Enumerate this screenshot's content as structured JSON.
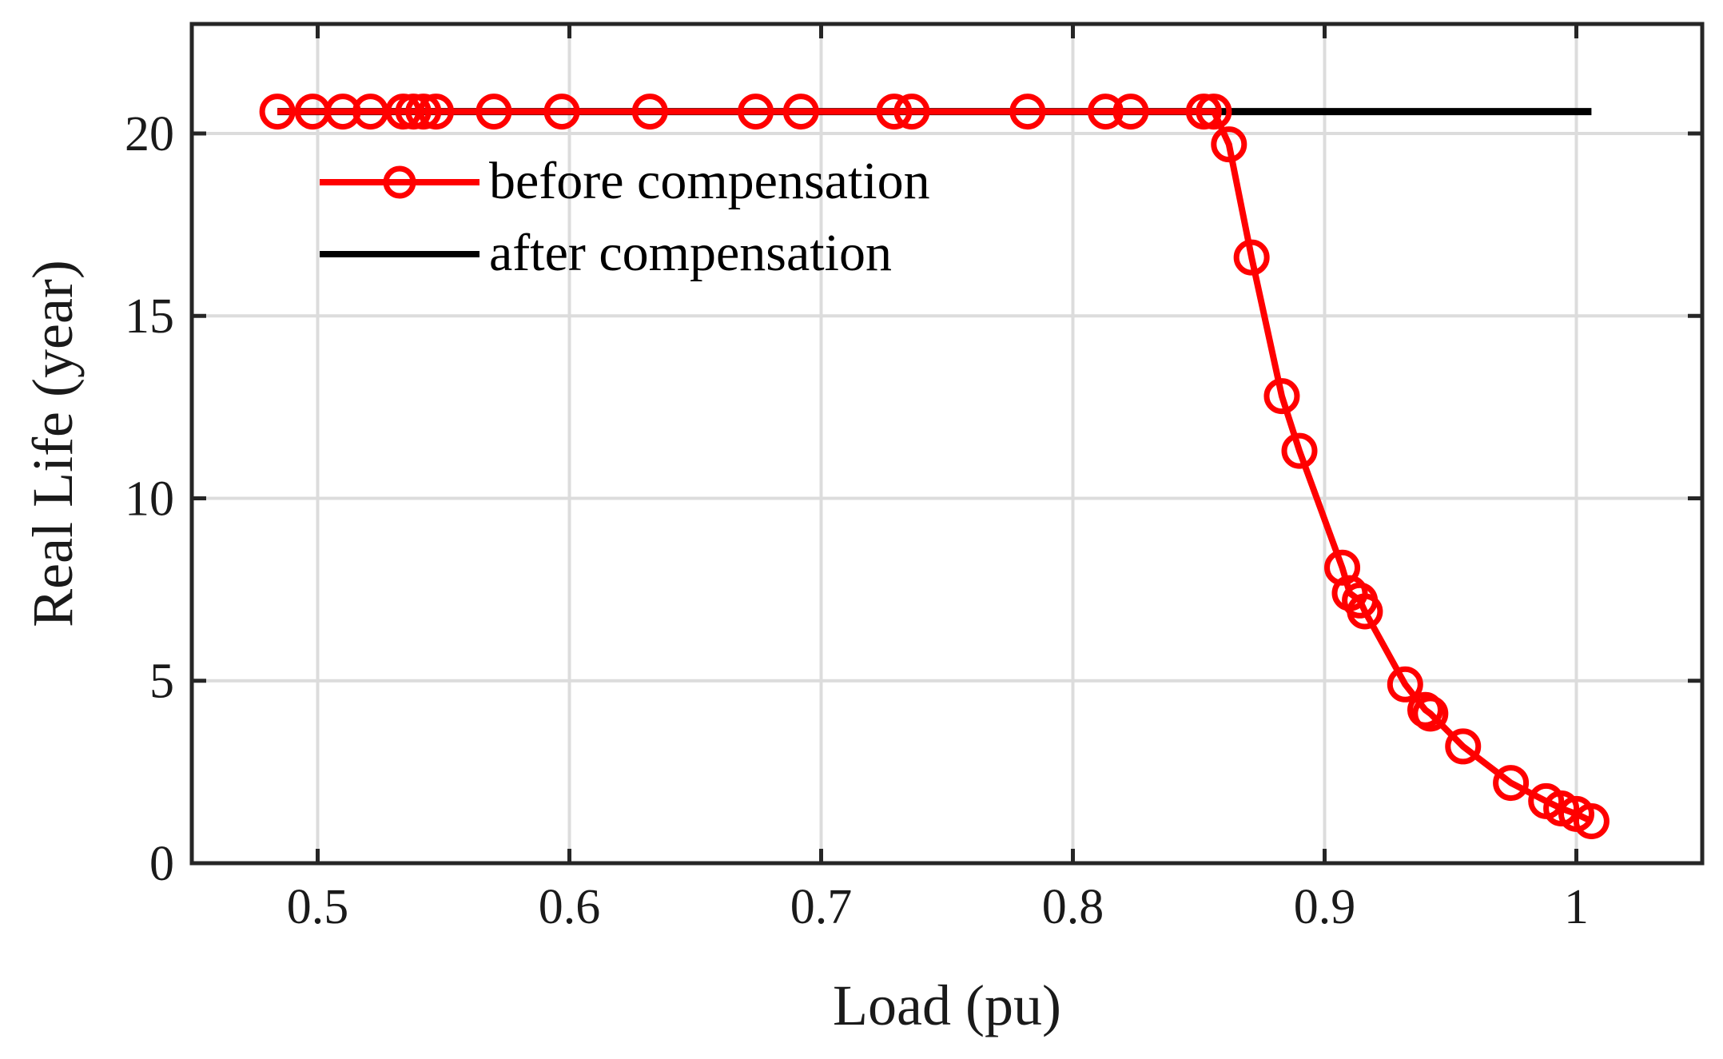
{
  "chart_data": {
    "type": "line",
    "xlabel": "Load (pu)",
    "ylabel": "Real Life (year)",
    "xlim": [
      0.45,
      1.05
    ],
    "ylim": [
      0,
      23
    ],
    "xticks": [
      0.5,
      0.6,
      0.7,
      0.8,
      0.9,
      1.0
    ],
    "xtick_labels": [
      "0.5",
      "0.6",
      "0.7",
      "0.8",
      "0.9",
      "1"
    ],
    "yticks": [
      0,
      5,
      10,
      15,
      20
    ],
    "ytick_labels": [
      "0",
      "5",
      "10",
      "15",
      "20"
    ],
    "grid": true,
    "legend_position": "upper-left",
    "series": [
      {
        "name": "before compensation",
        "color": "#ff0000",
        "marker": "circle",
        "x": [
          0.484,
          0.498,
          0.51,
          0.521,
          0.534,
          0.538,
          0.542,
          0.547,
          0.57,
          0.597,
          0.632,
          0.674,
          0.692,
          0.729,
          0.736,
          0.782,
          0.813,
          0.823,
          0.852,
          0.856,
          0.862,
          0.871,
          0.883,
          0.89,
          0.907,
          0.91,
          0.914,
          0.916,
          0.932,
          0.94,
          0.942,
          0.955,
          0.974,
          0.988,
          0.994,
          1.0,
          1.006
        ],
        "y": [
          20.6,
          20.6,
          20.6,
          20.6,
          20.6,
          20.6,
          20.6,
          20.6,
          20.6,
          20.6,
          20.6,
          20.6,
          20.6,
          20.6,
          20.6,
          20.6,
          20.6,
          20.6,
          20.6,
          20.6,
          19.7,
          16.6,
          12.8,
          11.3,
          8.1,
          7.4,
          7.2,
          6.9,
          4.9,
          4.2,
          4.1,
          3.2,
          2.2,
          1.7,
          1.5,
          1.35,
          1.15
        ]
      },
      {
        "name": "after compensation",
        "color": "#000000",
        "marker": "none",
        "x": [
          0.484,
          1.006
        ],
        "y": [
          20.6,
          20.6
        ]
      }
    ]
  }
}
